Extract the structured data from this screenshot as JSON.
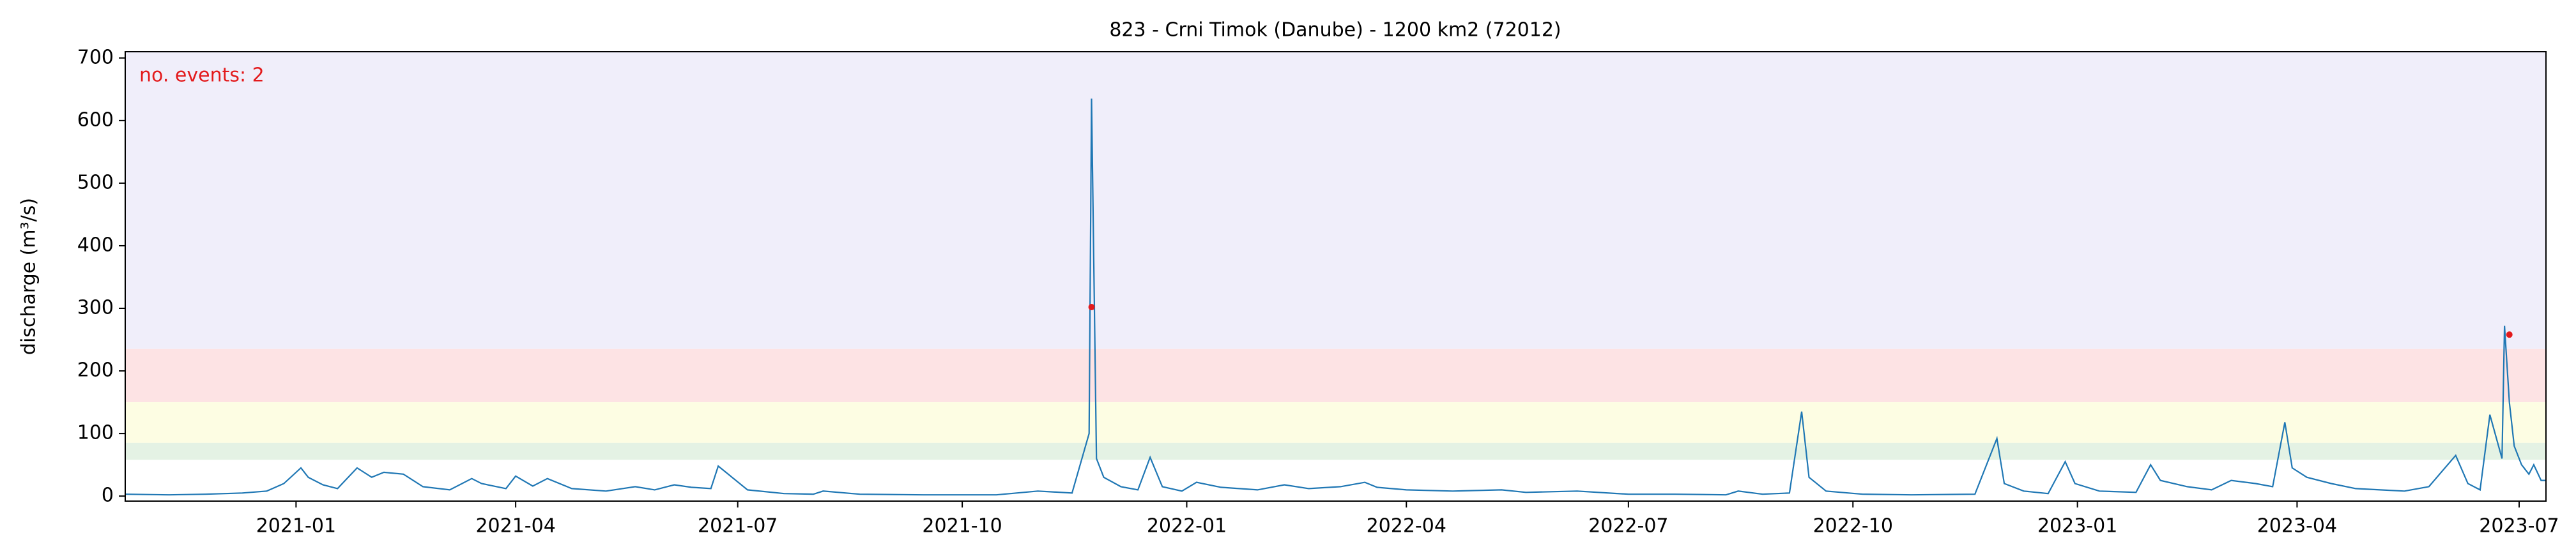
{
  "chart_data": {
    "type": "line",
    "title": "823 - Crni Timok (Danube) - 1200 km2 (72012)",
    "ylabel": "discharge (m³/s)",
    "annotation": "no. events: 2",
    "xlim": [
      "2020-10-23",
      "2023-07-12"
    ],
    "xticks": [
      "2021-01",
      "2021-04",
      "2021-07",
      "2021-10",
      "2022-01",
      "2022-04",
      "2022-07",
      "2022-10",
      "2023-01",
      "2023-04",
      "2023-07"
    ],
    "ylim": [
      -8,
      710
    ],
    "yticks": [
      0,
      100,
      200,
      300,
      400,
      500,
      600,
      700
    ],
    "bands": [
      {
        "from": 235,
        "to": 710,
        "color": "#f0eefa"
      },
      {
        "from": 150,
        "to": 235,
        "color": "#fde3e4"
      },
      {
        "from": 85,
        "to": 150,
        "color": "#fdfde3"
      },
      {
        "from": 58,
        "to": 85,
        "color": "#e4f2e4"
      }
    ],
    "x": [
      "2020-10-23",
      "2020-11-10",
      "2020-11-25",
      "2020-12-10",
      "2020-12-20",
      "2020-12-27",
      "2021-01-03",
      "2021-01-06",
      "2021-01-12",
      "2021-01-18",
      "2021-01-26",
      "2021-02-01",
      "2021-02-06",
      "2021-02-14",
      "2021-02-22",
      "2021-03-05",
      "2021-03-14",
      "2021-03-18",
      "2021-03-28",
      "2021-04-01",
      "2021-04-08",
      "2021-04-14",
      "2021-04-24",
      "2021-05-08",
      "2021-05-20",
      "2021-05-28",
      "2021-06-05",
      "2021-06-12",
      "2021-06-20",
      "2021-06-23",
      "2021-07-05",
      "2021-07-20",
      "2021-08-01",
      "2021-08-05",
      "2021-08-20",
      "2021-09-15",
      "2021-10-15",
      "2021-11-01",
      "2021-11-15",
      "2021-11-22",
      "2021-11-23",
      "2021-11-25",
      "2021-11-28",
      "2021-12-05",
      "2021-12-12",
      "2021-12-17",
      "2021-12-22",
      "2021-12-30",
      "2022-01-05",
      "2022-01-15",
      "2022-01-30",
      "2022-02-10",
      "2022-02-20",
      "2022-03-05",
      "2022-03-15",
      "2022-03-20",
      "2022-04-01",
      "2022-04-20",
      "2022-05-10",
      "2022-05-20",
      "2022-06-10",
      "2022-07-01",
      "2022-07-20",
      "2022-08-10",
      "2022-08-15",
      "2022-08-25",
      "2022-09-05",
      "2022-09-10",
      "2022-09-13",
      "2022-09-20",
      "2022-10-05",
      "2022-10-25",
      "2022-11-20",
      "2022-11-29",
      "2022-12-02",
      "2022-12-10",
      "2022-12-20",
      "2022-12-27",
      "2022-12-31",
      "2023-01-10",
      "2023-01-25",
      "2023-01-31",
      "2023-02-04",
      "2023-02-15",
      "2023-02-25",
      "2023-03-05",
      "2023-03-15",
      "2023-03-22",
      "2023-03-27",
      "2023-03-30",
      "2023-04-05",
      "2023-04-15",
      "2023-04-25",
      "2023-05-05",
      "2023-05-15",
      "2023-05-25",
      "2023-06-05",
      "2023-06-10",
      "2023-06-15",
      "2023-06-19",
      "2023-06-24",
      "2023-06-25",
      "2023-06-27",
      "2023-06-29",
      "2023-07-02",
      "2023-07-05",
      "2023-07-07",
      "2023-07-10",
      "2023-07-12"
    ],
    "series": [
      {
        "name": "discharge",
        "color": "#1f77b4",
        "values": [
          3,
          2,
          3,
          5,
          8,
          20,
          45,
          30,
          18,
          12,
          45,
          30,
          38,
          35,
          15,
          10,
          28,
          20,
          12,
          32,
          16,
          28,
          12,
          8,
          15,
          10,
          18,
          14,
          12,
          48,
          10,
          4,
          3,
          8,
          3,
          2,
          2,
          8,
          5,
          100,
          635,
          60,
          30,
          15,
          10,
          62,
          15,
          8,
          22,
          14,
          10,
          18,
          12,
          15,
          22,
          14,
          10,
          8,
          10,
          6,
          8,
          3,
          3,
          2,
          8,
          3,
          5,
          135,
          30,
          8,
          3,
          2,
          3,
          92,
          20,
          8,
          4,
          55,
          20,
          8,
          6,
          50,
          25,
          15,
          10,
          25,
          20,
          15,
          118,
          45,
          30,
          20,
          12,
          10,
          8,
          15,
          65,
          20,
          10,
          130,
          60,
          272,
          150,
          80,
          50,
          35,
          50,
          25,
          25
        ]
      }
    ],
    "events": {
      "color": "#e31a1c",
      "x": [
        "2021-11-23",
        "2023-06-27"
      ],
      "values": [
        302,
        258
      ]
    },
    "grid": false
  }
}
